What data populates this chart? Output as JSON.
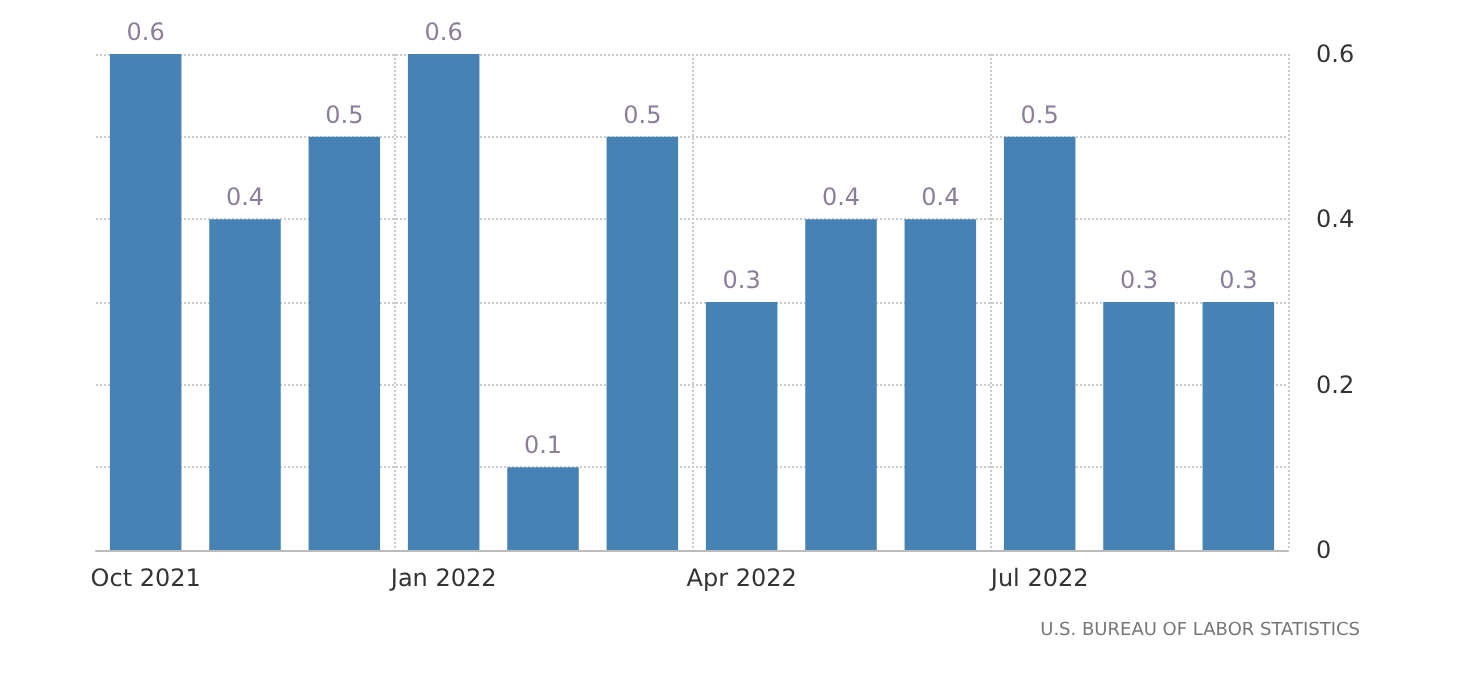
{
  "chart_data": {
    "type": "bar",
    "categories": [
      "Oct 2021",
      null,
      null,
      "Jan 2022",
      null,
      null,
      "Apr 2022",
      null,
      null,
      "Jul 2022",
      null,
      null
    ],
    "values": [
      0.6,
      0.4,
      0.5,
      0.6,
      0.1,
      0.5,
      0.3,
      0.4,
      0.4,
      0.5,
      0.3,
      0.3
    ],
    "color": "#4682b4",
    "ylim": [
      0,
      0.6
    ],
    "yticks": [
      0,
      0.2,
      0.4,
      0.6
    ],
    "grid": true,
    "data_labels": true,
    "annotations": [
      "U.S. BUREAU OF LABOR STATISTICS"
    ]
  }
}
